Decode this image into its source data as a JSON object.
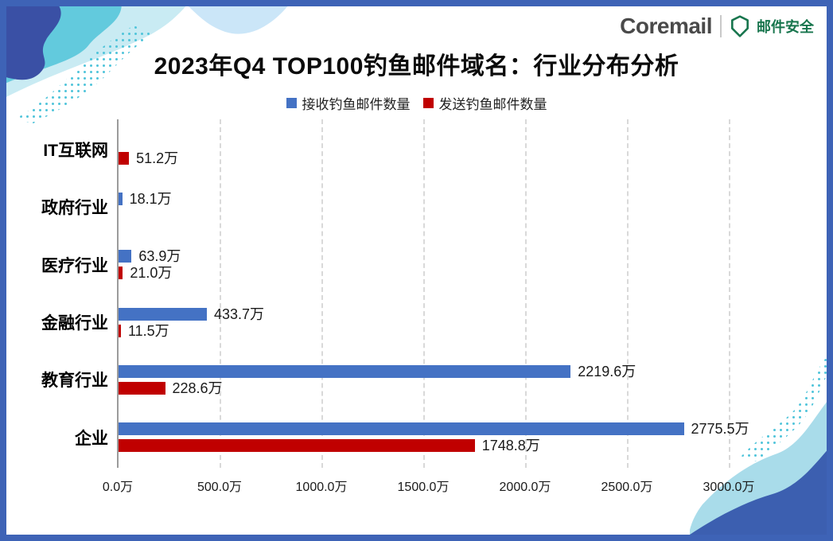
{
  "page": {
    "background": "#ffffff",
    "frame_color": "#3E63B6"
  },
  "header": {
    "brand": {
      "name": "Coremail",
      "divider": "|",
      "product": "邮件安全",
      "brand_green": "#17754D",
      "wordmark_color": "#4a4a4a",
      "shield_icon": "shield-outline"
    },
    "title": "2023年Q4 TOP100钓鱼邮件域名：行业分布分析"
  },
  "chart_data": {
    "type": "bar",
    "orientation": "horizontal",
    "title": "2023年Q4 TOP100钓鱼邮件域名：行业分布分析",
    "unit": "万",
    "categories": [
      "IT互联网",
      "政府行业",
      "医疗行业",
      "金融行业",
      "教育行业",
      "企业"
    ],
    "series": [
      {
        "name": "接收钓鱼邮件数量",
        "color": "#4472C4",
        "values": [
          null,
          18.1,
          63.9,
          433.7,
          2219.6,
          2775.5
        ],
        "labels": [
          "",
          "18.1万",
          "63.9万",
          "433.7万",
          "2219.6万",
          "2775.5万"
        ]
      },
      {
        "name": "发送钓鱼邮件数量",
        "color": "#C00000",
        "values": [
          51.2,
          null,
          21.0,
          11.5,
          228.6,
          1748.8
        ],
        "labels": [
          "51.2万",
          "",
          "21.0万",
          "11.5万",
          "228.6万",
          "1748.8万"
        ]
      }
    ],
    "x_axis": {
      "min": 0,
      "max": 3000,
      "tick_step": 500,
      "ticks": [
        "0.0万",
        "500.0万",
        "1000.0万",
        "1500.0万",
        "2000.0万",
        "2500.0万",
        "3000.0万"
      ],
      "gridlines": "dashed-vertical"
    },
    "legend_position": "top",
    "colors": {
      "axis_line": "#9b9b9b",
      "gridline": "#d9d9d9",
      "label_text": "#1a1a1a"
    }
  },
  "decor": {
    "corner_waves": [
      "top-left",
      "bottom-right"
    ],
    "palette": {
      "dark_indigo": "#3A50A5",
      "teal": "#62CADD",
      "pale_cyan": "#C9EBF3",
      "pale_blue": "#CBE6F8",
      "dots": "#4FC4DA",
      "br_teal": "#A9DCEA",
      "br_blue": "#3C5FB0"
    }
  }
}
